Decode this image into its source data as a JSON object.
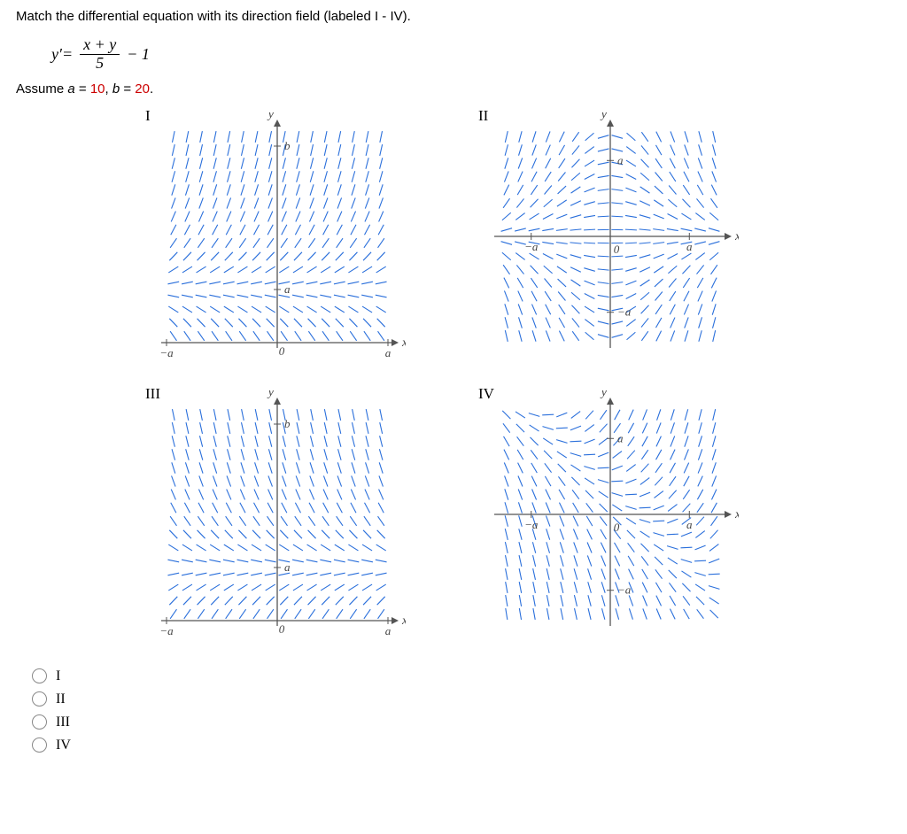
{
  "question": "Match the differential equation with its direction field (labeled I - IV).",
  "equation": {
    "lhs": "y′",
    "eq": " = ",
    "frac_num": "x + y",
    "frac_den": "5",
    "tail": " − 1"
  },
  "assume_prefix": "Assume ",
  "assume_a_label": "a",
  "assume_a_val": "10",
  "assume_b_label": "b",
  "assume_b_val": "20",
  "panels": {
    "I": {
      "label": "I"
    },
    "II": {
      "label": "II"
    },
    "III": {
      "label": "III"
    },
    "IV": {
      "label": "IV"
    }
  },
  "axis": {
    "x": "x",
    "y": "y",
    "a": "a",
    "neg_a": "−a",
    "b": "b",
    "zero": "0"
  },
  "options": [
    "I",
    "II",
    "III",
    "IV"
  ],
  "style": {
    "segment_color": "#2a6fdb",
    "axis_color": "#555555",
    "bg": "#ffffff",
    "seg_len": 6.5,
    "grid_n": 16
  }
}
